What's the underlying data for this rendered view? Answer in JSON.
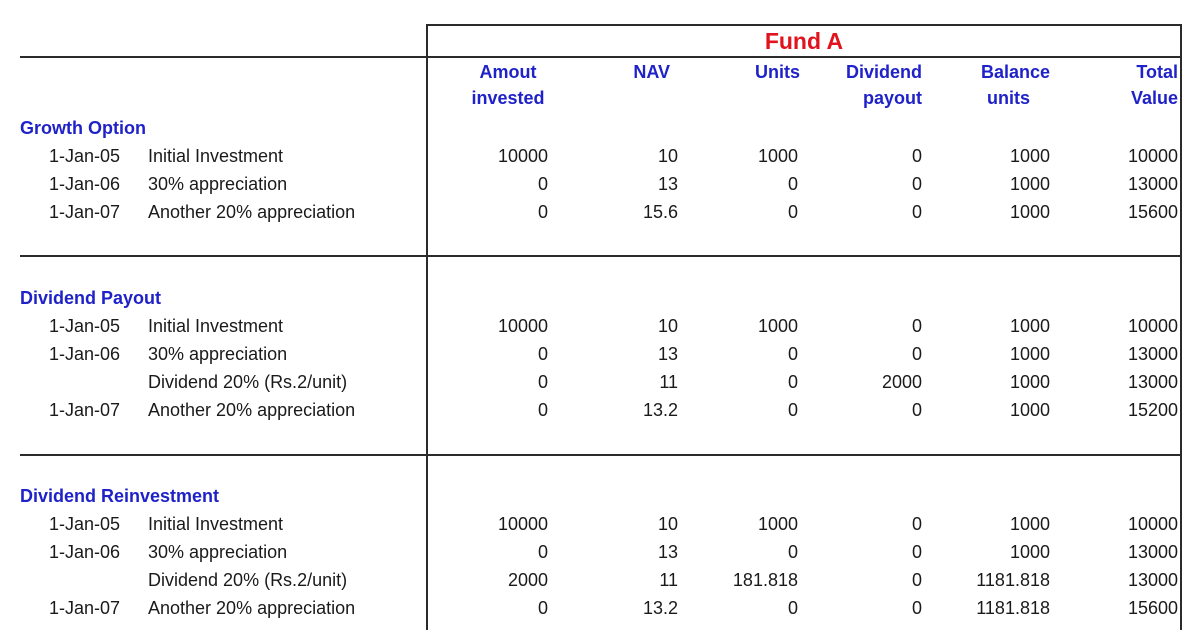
{
  "fund_title": "Fund A",
  "headers": {
    "amount": [
      "Amout",
      "invested"
    ],
    "nav": "NAV",
    "units": "Units",
    "dividend": [
      "Dividend",
      "payout"
    ],
    "balance": [
      "Balance",
      "units"
    ],
    "total": [
      "Total",
      "Value"
    ]
  },
  "sections": [
    {
      "title": "Growth Option",
      "rows": [
        {
          "date": "1-Jan-05",
          "desc": "Initial Investment",
          "amount": "10000",
          "nav": "10",
          "units": "1000",
          "dividend": "0",
          "balance": "1000",
          "total": "10000"
        },
        {
          "date": "1-Jan-06",
          "desc": "30% appreciation",
          "amount": "0",
          "nav": "13",
          "units": "0",
          "dividend": "0",
          "balance": "1000",
          "total": "13000"
        },
        {
          "date": "1-Jan-07",
          "desc": "Another 20% appreciation",
          "amount": "0",
          "nav": "15.6",
          "units": "0",
          "dividend": "0",
          "balance": "1000",
          "total": "15600"
        }
      ]
    },
    {
      "title": "Dividend Payout",
      "rows": [
        {
          "date": "1-Jan-05",
          "desc": "Initial Investment",
          "amount": "10000",
          "nav": "10",
          "units": "1000",
          "dividend": "0",
          "balance": "1000",
          "total": "10000"
        },
        {
          "date": "1-Jan-06",
          "desc": "30% appreciation",
          "amount": "0",
          "nav": "13",
          "units": "0",
          "dividend": "0",
          "balance": "1000",
          "total": "13000"
        },
        {
          "date": "",
          "desc": "Dividend 20% (Rs.2/unit)",
          "amount": "0",
          "nav": "11",
          "units": "0",
          "dividend": "2000",
          "balance": "1000",
          "total": "13000"
        },
        {
          "date": "1-Jan-07",
          "desc": "Another 20% appreciation",
          "amount": "0",
          "nav": "13.2",
          "units": "0",
          "dividend": "0",
          "balance": "1000",
          "total": "15200"
        }
      ]
    },
    {
      "title": "Dividend Reinvestment",
      "rows": [
        {
          "date": "1-Jan-05",
          "desc": "Initial Investment",
          "amount": "10000",
          "nav": "10",
          "units": "1000",
          "dividend": "0",
          "balance": "1000",
          "total": "10000"
        },
        {
          "date": "1-Jan-06",
          "desc": "30% appreciation",
          "amount": "0",
          "nav": "13",
          "units": "0",
          "dividend": "0",
          "balance": "1000",
          "total": "13000"
        },
        {
          "date": "",
          "desc": "Dividend 20% (Rs.2/unit)",
          "amount": "2000",
          "nav": "11",
          "units": "181.818",
          "dividend": "0",
          "balance": "1181.818",
          "total": "13000"
        },
        {
          "date": "1-Jan-07",
          "desc": "Another 20% appreciation",
          "amount": "0",
          "nav": "13.2",
          "units": "0",
          "dividend": "0",
          "balance": "1181.818",
          "total": "15600"
        }
      ]
    }
  ]
}
